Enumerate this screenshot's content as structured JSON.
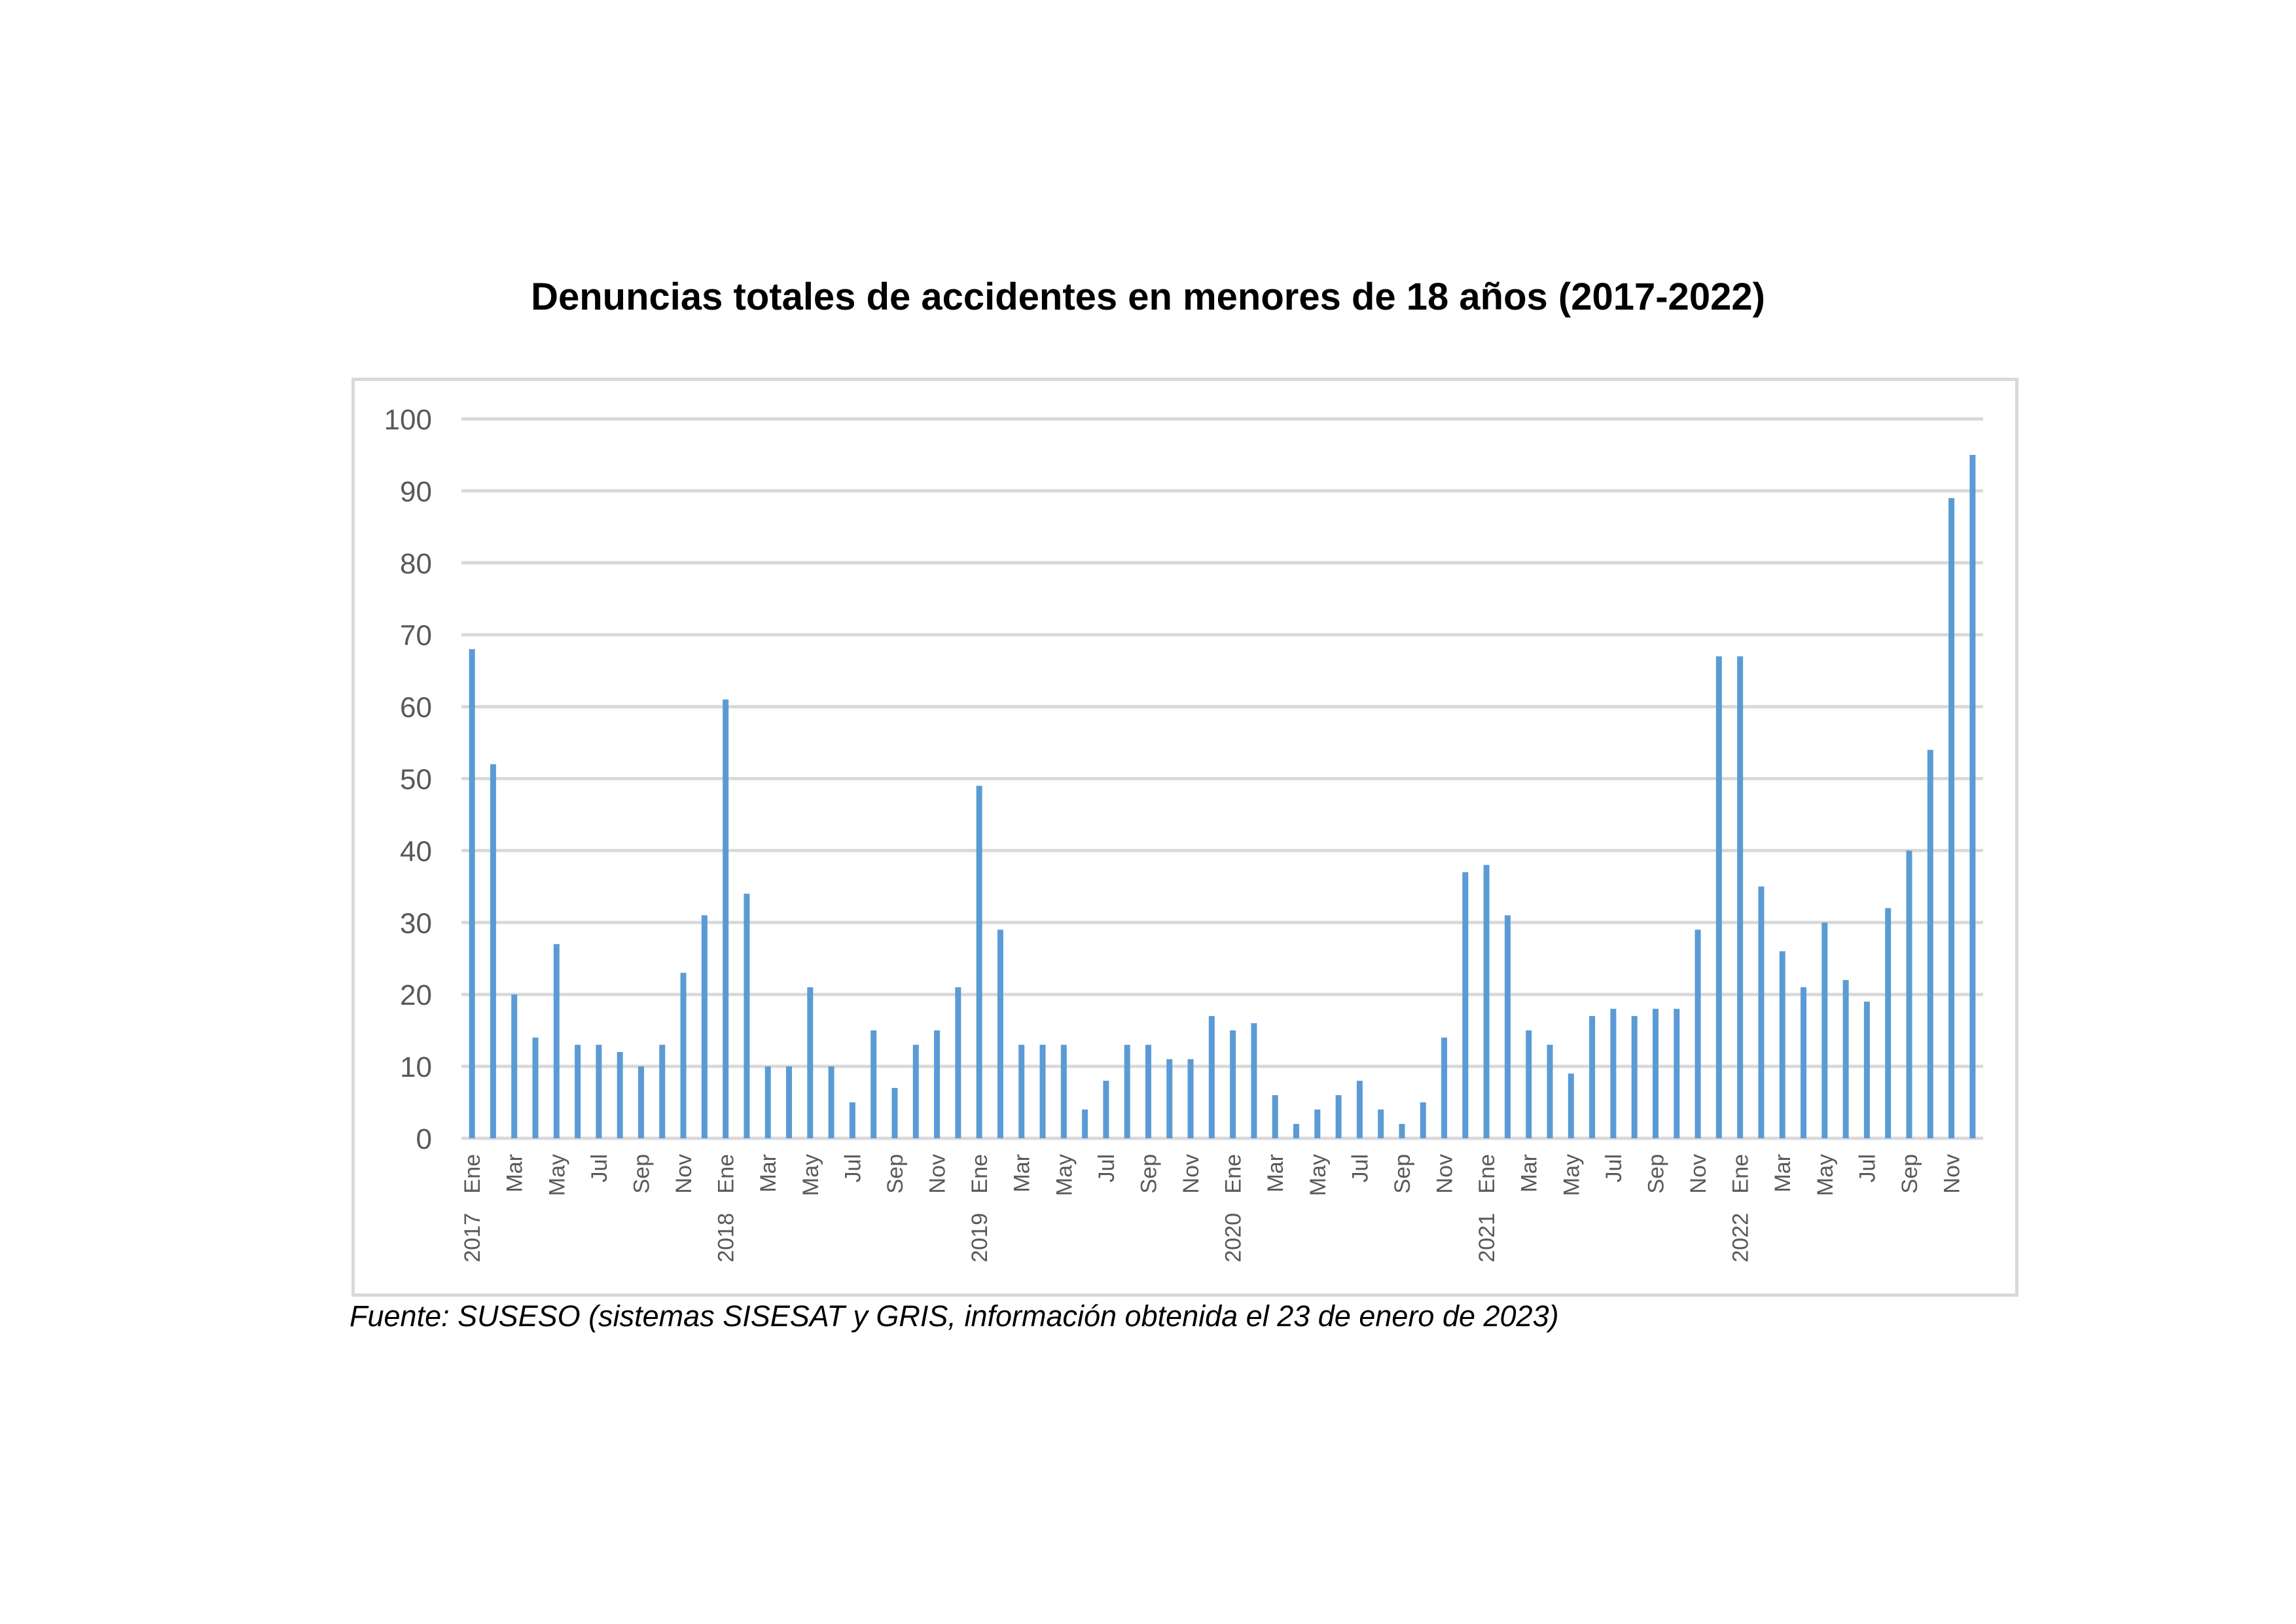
{
  "chart_data": {
    "type": "bar",
    "title": "Denuncias totales de accidentes en menores de 18 años (2017-2022)",
    "source": "Fuente: SUSESO (sistemas SISESAT y GRIS, información obtenida el 23 de enero de 2023)",
    "xlabel": "",
    "ylabel": "",
    "ylim": [
      0,
      100
    ],
    "y_ticks": [
      0,
      10,
      20,
      30,
      40,
      50,
      60,
      70,
      80,
      90,
      100
    ],
    "grid": true,
    "legend": "none",
    "bar_color": "#5b9bd5",
    "years": [
      "2017",
      "2018",
      "2019",
      "2020",
      "2021",
      "2022"
    ],
    "month_labels": [
      "Ene",
      "",
      "Mar",
      "",
      "May",
      "",
      "Jul",
      "",
      "Sep",
      "",
      "Nov",
      ""
    ],
    "values": [
      68,
      52,
      20,
      14,
      27,
      13,
      13,
      12,
      10,
      13,
      23,
      31,
      61,
      34,
      10,
      10,
      21,
      10,
      5,
      15,
      7,
      13,
      15,
      21,
      49,
      29,
      13,
      13,
      13,
      4,
      8,
      13,
      13,
      11,
      11,
      17,
      15,
      16,
      6,
      2,
      4,
      6,
      8,
      4,
      2,
      5,
      14,
      37,
      38,
      31,
      15,
      13,
      9,
      17,
      18,
      17,
      18,
      18,
      29,
      67,
      67,
      35,
      26,
      21,
      30,
      22,
      19,
      32,
      40,
      54,
      89,
      95
    ]
  }
}
